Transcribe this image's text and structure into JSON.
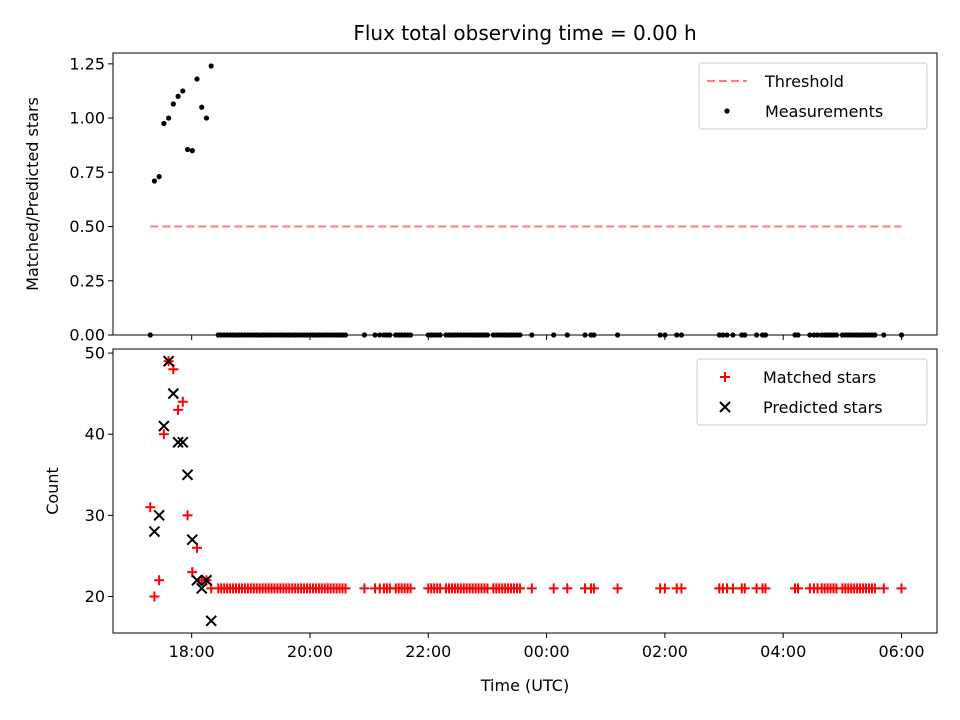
{
  "figure": {
    "title": "Flux total observing time = 0.00 h",
    "xlabel": "Time (UTC)"
  },
  "chart_data": [
    {
      "type": "scatter",
      "title": "Flux total observing time = 0.00 h",
      "ylabel": "Matched/Predicted stars",
      "ylim": [
        0,
        1.3
      ],
      "xlim_hours": [
        16.67,
        30.6
      ],
      "yticks": [
        "0.00",
        "0.25",
        "0.50",
        "0.75",
        "1.00",
        "1.25"
      ],
      "ytick_values": [
        0,
        0.25,
        0.5,
        0.75,
        1.0,
        1.25
      ],
      "xticks": [
        "18:00",
        "20:00",
        "22:00",
        "00:00",
        "02:00",
        "04:00",
        "06:00"
      ],
      "xtick_hours": [
        18,
        20,
        22,
        24,
        26,
        28,
        30
      ],
      "legend": {
        "placement": "top-right",
        "entries": [
          "Threshold",
          "Measurements"
        ]
      },
      "series": [
        {
          "name": "Threshold",
          "kind": "dashed-line",
          "color": "#ff7f7f",
          "x": [
            17.3,
            30.0
          ],
          "y": [
            0.5,
            0.5
          ]
        },
        {
          "name": "Measurements",
          "kind": "dot",
          "color": "#000000",
          "x": [
            17.3,
            17.37,
            17.45,
            17.53,
            17.61,
            17.69,
            17.77,
            17.85,
            17.93,
            18.01,
            18.09,
            18.17,
            18.25,
            18.33,
            18.45,
            18.5,
            18.55,
            18.6,
            18.65,
            18.7,
            18.75,
            18.8,
            18.85,
            18.9,
            18.95,
            19.0,
            19.05,
            19.1,
            19.15,
            19.2,
            19.25,
            19.3,
            19.35,
            19.4,
            19.45,
            19.5,
            19.55,
            19.6,
            19.65,
            19.7,
            19.75,
            19.8,
            19.85,
            19.9,
            19.95,
            20.0,
            20.05,
            20.1,
            20.15,
            20.2,
            20.25,
            20.3,
            20.35,
            20.4,
            20.45,
            20.5,
            20.55,
            20.6,
            20.92,
            21.1,
            21.18,
            21.25,
            21.3,
            21.35,
            21.45,
            21.5,
            21.55,
            21.6,
            21.65,
            21.7,
            22.0,
            22.05,
            22.1,
            22.15,
            22.2,
            22.3,
            22.35,
            22.4,
            22.45,
            22.5,
            22.55,
            22.6,
            22.65,
            22.7,
            22.75,
            22.8,
            22.85,
            22.9,
            22.95,
            23.0,
            23.1,
            23.15,
            23.2,
            23.25,
            23.3,
            23.35,
            23.4,
            23.45,
            23.5,
            23.55,
            23.75,
            24.12,
            24.35,
            24.65,
            24.75,
            24.8,
            25.2,
            25.92,
            26.0,
            26.2,
            26.28,
            26.92,
            26.98,
            27.05,
            27.15,
            27.3,
            27.35,
            27.55,
            27.65,
            27.7,
            28.2,
            28.25,
            28.45,
            28.52,
            28.58,
            28.65,
            28.7,
            28.75,
            28.8,
            28.85,
            28.9,
            29.0,
            29.05,
            29.1,
            29.15,
            29.2,
            29.25,
            29.3,
            29.35,
            29.4,
            29.45,
            29.5,
            29.55,
            29.7,
            30.0
          ],
          "y": [
            0,
            0.71,
            0.73,
            0.975,
            1.0,
            1.065,
            1.1,
            1.125,
            0.855,
            0.85,
            1.18,
            1.05,
            1.0,
            1.24,
            0,
            0,
            0,
            0,
            0,
            0,
            0,
            0,
            0,
            0,
            0,
            0,
            0,
            0,
            0,
            0,
            0,
            0,
            0,
            0,
            0,
            0,
            0,
            0,
            0,
            0,
            0,
            0,
            0,
            0,
            0,
            0,
            0,
            0,
            0,
            0,
            0,
            0,
            0,
            0,
            0,
            0,
            0,
            0,
            0,
            0,
            0,
            0,
            0,
            0,
            0,
            0,
            0,
            0,
            0,
            0,
            0,
            0,
            0,
            0,
            0,
            0,
            0,
            0,
            0,
            0,
            0,
            0,
            0,
            0,
            0,
            0,
            0,
            0,
            0,
            0,
            0,
            0,
            0,
            0,
            0,
            0,
            0,
            0,
            0,
            0,
            0,
            0,
            0,
            0,
            0,
            0,
            0,
            0,
            0,
            0,
            0,
            0,
            0,
            0,
            0,
            0,
            0,
            0,
            0,
            0,
            0,
            0,
            0,
            0,
            0,
            0,
            0,
            0,
            0,
            0,
            0,
            0,
            0,
            0,
            0,
            0,
            0,
            0,
            0,
            0,
            0,
            0,
            0,
            0,
            0
          ]
        }
      ]
    },
    {
      "type": "scatter",
      "ylabel": "Count",
      "xlabel": "Time (UTC)",
      "ylim": [
        15.5,
        50.5
      ],
      "xlim_hours": [
        16.67,
        30.6
      ],
      "yticks": [
        "20",
        "30",
        "40",
        "50"
      ],
      "ytick_values": [
        20,
        30,
        40,
        50
      ],
      "xticks": [
        "18:00",
        "20:00",
        "22:00",
        "00:00",
        "02:00",
        "04:00",
        "06:00"
      ],
      "xtick_hours": [
        18,
        20,
        22,
        24,
        26,
        28,
        30
      ],
      "legend": {
        "placement": "top-right",
        "entries": [
          "Matched stars",
          "Predicted stars"
        ]
      },
      "series": [
        {
          "name": "Matched stars",
          "kind": "plus",
          "color": "#ff0000",
          "x": [
            17.3,
            17.37,
            17.45,
            17.53,
            17.61,
            17.69,
            17.77,
            17.85,
            17.93,
            18.01,
            18.09,
            18.17,
            18.25,
            18.33,
            18.45,
            18.5,
            18.55,
            18.6,
            18.65,
            18.7,
            18.75,
            18.8,
            18.85,
            18.9,
            18.95,
            19.0,
            19.05,
            19.1,
            19.15,
            19.2,
            19.25,
            19.3,
            19.35,
            19.4,
            19.45,
            19.5,
            19.55,
            19.6,
            19.65,
            19.7,
            19.75,
            19.8,
            19.85,
            19.9,
            19.95,
            20.0,
            20.05,
            20.1,
            20.15,
            20.2,
            20.25,
            20.3,
            20.35,
            20.4,
            20.45,
            20.5,
            20.55,
            20.6,
            20.92,
            21.1,
            21.18,
            21.25,
            21.3,
            21.35,
            21.45,
            21.5,
            21.55,
            21.6,
            21.65,
            21.7,
            22.0,
            22.05,
            22.1,
            22.15,
            22.2,
            22.3,
            22.35,
            22.4,
            22.45,
            22.5,
            22.55,
            22.6,
            22.65,
            22.7,
            22.75,
            22.8,
            22.85,
            22.9,
            22.95,
            23.0,
            23.1,
            23.15,
            23.2,
            23.25,
            23.3,
            23.35,
            23.4,
            23.45,
            23.5,
            23.55,
            23.75,
            24.12,
            24.35,
            24.65,
            24.75,
            24.8,
            25.2,
            25.92,
            26.0,
            26.2,
            26.28,
            26.92,
            26.98,
            27.05,
            27.15,
            27.3,
            27.35,
            27.55,
            27.65,
            27.7,
            28.2,
            28.25,
            28.45,
            28.52,
            28.58,
            28.65,
            28.7,
            28.75,
            28.8,
            28.85,
            28.9,
            29.0,
            29.05,
            29.1,
            29.15,
            29.2,
            29.25,
            29.3,
            29.35,
            29.4,
            29.45,
            29.5,
            29.55,
            29.7,
            30.0
          ],
          "y": [
            31,
            20,
            22,
            40,
            49,
            48,
            43,
            44,
            30,
            23,
            26,
            22,
            22,
            21,
            21,
            21,
            21,
            21,
            21,
            21,
            21,
            21,
            21,
            21,
            21,
            21,
            21,
            21,
            21,
            21,
            21,
            21,
            21,
            21,
            21,
            21,
            21,
            21,
            21,
            21,
            21,
            21,
            21,
            21,
            21,
            21,
            21,
            21,
            21,
            21,
            21,
            21,
            21,
            21,
            21,
            21,
            21,
            21,
            21,
            21,
            21,
            21,
            21,
            21,
            21,
            21,
            21,
            21,
            21,
            21,
            21,
            21,
            21,
            21,
            21,
            21,
            21,
            21,
            21,
            21,
            21,
            21,
            21,
            21,
            21,
            21,
            21,
            21,
            21,
            21,
            21,
            21,
            21,
            21,
            21,
            21,
            21,
            21,
            21,
            21,
            21,
            21,
            21,
            21,
            21,
            21,
            21,
            21,
            21,
            21,
            21,
            21,
            21,
            21,
            21,
            21,
            21,
            21,
            21,
            21,
            21,
            21,
            21,
            21,
            21,
            21,
            21,
            21,
            21,
            21,
            21,
            21,
            21,
            21,
            21,
            21,
            21,
            21,
            21,
            21,
            21,
            21,
            21,
            21,
            21
          ]
        },
        {
          "name": "Predicted stars",
          "kind": "cross",
          "color": "#000000",
          "x": [
            17.37,
            17.45,
            17.53,
            17.61,
            17.69,
            17.77,
            17.85,
            17.93,
            18.01,
            18.09,
            18.17,
            18.25,
            18.33
          ],
          "y": [
            28,
            30,
            41,
            49,
            45,
            39,
            39,
            35,
            27,
            22,
            21,
            22,
            17
          ]
        }
      ]
    }
  ]
}
